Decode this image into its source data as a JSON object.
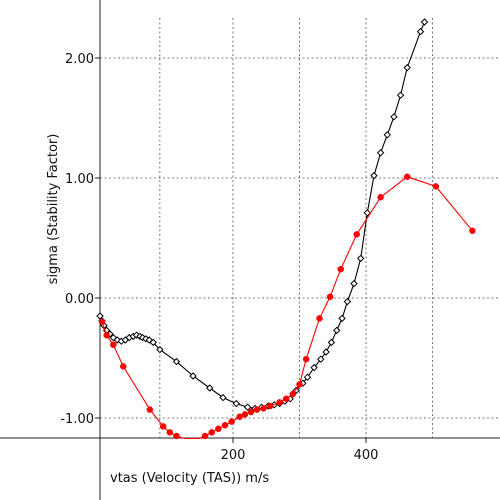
{
  "chart_data": {
    "type": "line",
    "xlabel": "vtas (Velocity (TAS)) m/s",
    "ylabel": "sigma (Stability Factor)",
    "xlim": [
      0,
      560
    ],
    "ylim": [
      -1.17,
      2.3
    ],
    "x_ticks": [
      {
        "value": 200,
        "label": "200"
      },
      {
        "value": 400,
        "label": "400"
      }
    ],
    "y_ticks": [
      {
        "value": 2.0,
        "label": "2.00"
      },
      {
        "value": 1.0,
        "label": "1.00"
      },
      {
        "value": 0.0,
        "label": "0.00"
      },
      {
        "value": -1.0,
        "label": "-1.00"
      }
    ],
    "x_grid_values": [
      90,
      200,
      300,
      400,
      500
    ],
    "grid": true,
    "series": [
      {
        "marker": "diamond",
        "color": "#000000",
        "points": [
          [
            0,
            -0.15
          ],
          [
            3,
            -0.19
          ],
          [
            6,
            -0.23
          ],
          [
            10,
            -0.27
          ],
          [
            15,
            -0.3
          ],
          [
            20,
            -0.33
          ],
          [
            26,
            -0.35
          ],
          [
            32,
            -0.36
          ],
          [
            38,
            -0.35
          ],
          [
            44,
            -0.33
          ],
          [
            50,
            -0.32
          ],
          [
            55,
            -0.31
          ],
          [
            60,
            -0.32
          ],
          [
            64,
            -0.33
          ],
          [
            69,
            -0.34
          ],
          [
            74,
            -0.35
          ],
          [
            80,
            -0.37
          ],
          [
            90,
            -0.43
          ],
          [
            115,
            -0.53
          ],
          [
            140,
            -0.65
          ],
          [
            165,
            -0.75
          ],
          [
            185,
            -0.83
          ],
          [
            205,
            -0.88
          ],
          [
            222,
            -0.91
          ],
          [
            233,
            -0.92
          ],
          [
            243,
            -0.91
          ],
          [
            253,
            -0.9
          ],
          [
            262,
            -0.89
          ],
          [
            270,
            -0.88
          ],
          [
            278,
            -0.86
          ],
          [
            286,
            -0.84
          ],
          [
            295,
            -0.77
          ],
          [
            305,
            -0.71
          ],
          [
            312,
            -0.66
          ],
          [
            322,
            -0.58
          ],
          [
            332,
            -0.51
          ],
          [
            340,
            -0.45
          ],
          [
            348,
            -0.37
          ],
          [
            356,
            -0.27
          ],
          [
            364,
            -0.17
          ],
          [
            372,
            -0.03
          ],
          [
            382,
            0.12
          ],
          [
            392,
            0.33
          ],
          [
            402,
            0.71
          ],
          [
            412,
            1.02
          ],
          [
            422,
            1.21
          ],
          [
            432,
            1.36
          ],
          [
            442,
            1.51
          ],
          [
            452,
            1.69
          ],
          [
            462,
            1.92
          ],
          [
            482,
            2.22
          ],
          [
            488,
            2.3
          ]
        ]
      },
      {
        "marker": "circle",
        "color": "#ff0000",
        "points": [
          [
            3,
            -0.2
          ],
          [
            10,
            -0.31
          ],
          [
            20,
            -0.39
          ],
          [
            35,
            -0.57
          ],
          [
            75,
            -0.93
          ],
          [
            95,
            -1.07
          ],
          [
            105,
            -1.12
          ],
          [
            115,
            -1.15
          ],
          [
            127,
            -1.17
          ],
          [
            139,
            -1.17
          ],
          [
            149,
            -1.17
          ],
          [
            158,
            -1.15
          ],
          [
            168,
            -1.12
          ],
          [
            178,
            -1.09
          ],
          [
            188,
            -1.06
          ],
          [
            198,
            -1.03
          ],
          [
            210,
            -0.99
          ],
          [
            218,
            -0.97
          ],
          [
            227,
            -0.95
          ],
          [
            236,
            -0.93
          ],
          [
            246,
            -0.92
          ],
          [
            256,
            -0.9
          ],
          [
            270,
            -0.87
          ],
          [
            280,
            -0.84
          ],
          [
            290,
            -0.8
          ],
          [
            300,
            -0.72
          ],
          [
            310,
            -0.51
          ],
          [
            330,
            -0.17
          ],
          [
            346,
            0.01
          ],
          [
            362,
            0.24
          ],
          [
            386,
            0.53
          ],
          [
            422,
            0.84
          ],
          [
            462,
            1.01
          ],
          [
            505,
            0.93
          ],
          [
            560,
            0.56
          ]
        ]
      }
    ]
  }
}
